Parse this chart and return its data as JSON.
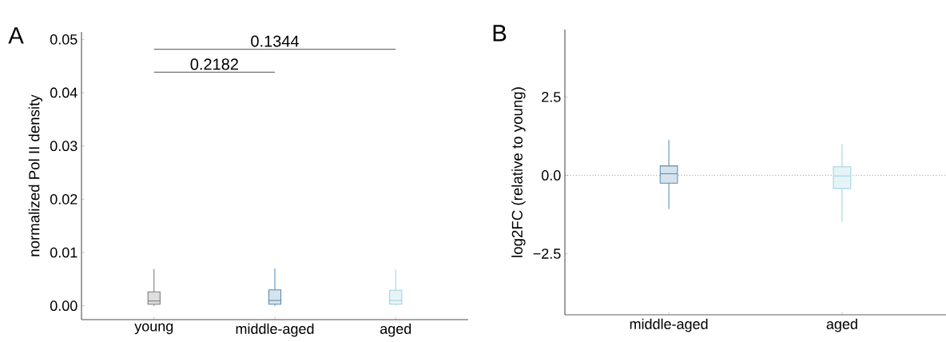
{
  "chart_data": [
    {
      "type": "box",
      "title": "A",
      "ylabel": "normalized Pol II density",
      "categories": [
        "young",
        "middle-aged",
        "aged"
      ],
      "colors": [
        "#7a7a7a",
        "#5b8db5",
        "#9fd3df"
      ],
      "boxes": [
        {
          "low": 0,
          "q1": 0.0003,
          "median": 0.0009,
          "q3": 0.0026,
          "high": 0.0069
        },
        {
          "low": 0,
          "q1": 0.0003,
          "median": 0.001,
          "q3": 0.003,
          "high": 0.007
        },
        {
          "low": 0,
          "q1": 0.0003,
          "median": 0.001,
          "q3": 0.0029,
          "high": 0.0068
        }
      ],
      "ylim": [
        -0.0026,
        0.0514
      ],
      "yticks": [
        {
          "value": 0,
          "label": "0.00"
        },
        {
          "value": 0.01,
          "label": "0.01"
        },
        {
          "value": 0.02,
          "label": "0.02"
        },
        {
          "value": 0.03,
          "label": "0.03"
        },
        {
          "value": 0.04,
          "label": "0.04"
        },
        {
          "value": 0.05,
          "label": "0.05"
        }
      ],
      "annotations": [
        "0.2182",
        "0.1344"
      ],
      "grid": false
    },
    {
      "type": "box",
      "title": "B",
      "ylabel": "log2FC (relative to young)",
      "categories": [
        "middle-aged",
        "aged"
      ],
      "colors": [
        "#5b8db5",
        "#9fd3df"
      ],
      "boxes": [
        {
          "low": -1.07,
          "q1": -0.25,
          "median": 0.05,
          "q3": 0.3,
          "high": 1.13
        },
        {
          "low": -1.48,
          "q1": -0.42,
          "median": -0.02,
          "q3": 0.27,
          "high": 1.0
        }
      ],
      "ylim": [
        -4.45,
        4.65
      ],
      "yticks": [
        {
          "value": -2.5,
          "label": "−2.5"
        },
        {
          "value": 0,
          "label": "0.0"
        },
        {
          "value": 2.5,
          "label": "2.5"
        }
      ],
      "ref_lines": [
        {
          "axis": "y",
          "value": 0,
          "line_style": "dotted",
          "color": "#666666"
        }
      ],
      "grid": false
    }
  ]
}
